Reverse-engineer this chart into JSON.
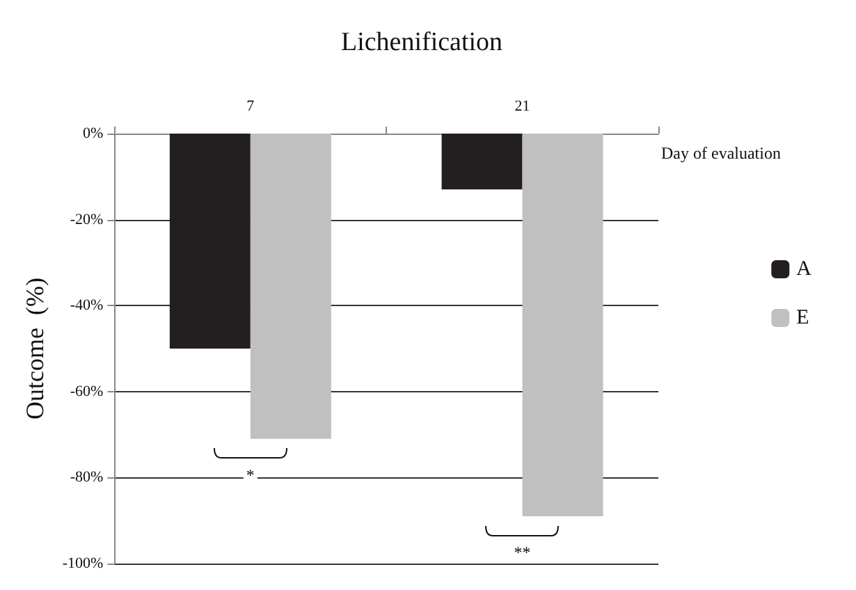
{
  "chart_data": {
    "type": "bar",
    "title": "Lichenification",
    "xlabel": "Day of evaluation",
    "ylabel": "Outcome  (%)",
    "categories": [
      "7",
      "21"
    ],
    "series": [
      {
        "name": "A",
        "color": "#231f20",
        "values": [
          -50,
          -13
        ]
      },
      {
        "name": "E",
        "color": "#c0c0c0",
        "values": [
          -71,
          -89
        ]
      }
    ],
    "ylim": [
      -100,
      0
    ],
    "yticks": [
      {
        "value": -100,
        "label": "-100%"
      },
      {
        "value": -80,
        "label": "-80%"
      },
      {
        "value": -60,
        "label": "-60%"
      },
      {
        "value": -40,
        "label": "-40%"
      },
      {
        "value": -20,
        "label": "-20%"
      },
      {
        "value": 0,
        "label": "0%"
      }
    ],
    "grid": "y",
    "legend": "right",
    "annotations": [
      "*",
      "**"
    ]
  }
}
